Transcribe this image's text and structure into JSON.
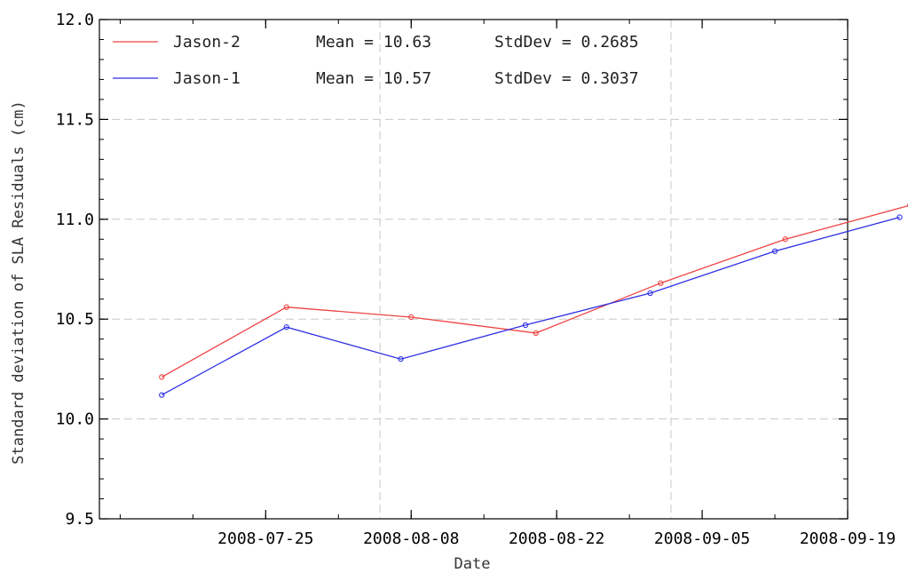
{
  "chart_data": {
    "type": "line",
    "xlabel": "Date",
    "ylabel": "Standard deviation of SLA Residuals (cm)",
    "xlim": [
      "2008-07-09",
      "2008-09-19"
    ],
    "ylim": [
      9.5,
      12.0
    ],
    "x_ticks": [
      "2008-07-25",
      "2008-08-08",
      "2008-08-22",
      "2008-09-05",
      "2008-09-19"
    ],
    "y_ticks": [
      "9.5",
      "10.0",
      "10.5",
      "11.0",
      "11.5",
      "12.0"
    ],
    "grid": "dashed",
    "legend_position": "top-left",
    "series": [
      {
        "name": "Jason-2",
        "color": "#ef4444",
        "mean_label": "Mean = 10.63",
        "stddev_label": "StdDev = 0.2685",
        "x": [
          "2008-07-15",
          "2008-07-27",
          "2008-08-08",
          "2008-08-20",
          "2008-09-01",
          "2008-09-13",
          "2008-09-25"
        ],
        "y": [
          10.21,
          10.56,
          10.51,
          10.43,
          10.68,
          10.9,
          11.07
        ]
      },
      {
        "name": "Jason-1",
        "color": "#2f2fe6",
        "mean_label": "Mean = 10.57",
        "stddev_label": "StdDev = 0.3037",
        "x": [
          "2008-07-15",
          "2008-07-27",
          "2008-08-07",
          "2008-08-19",
          "2008-08-31",
          "2008-09-12",
          "2008-09-24"
        ],
        "y": [
          10.12,
          10.46,
          10.3,
          10.47,
          10.63,
          10.84,
          11.01
        ]
      }
    ]
  }
}
